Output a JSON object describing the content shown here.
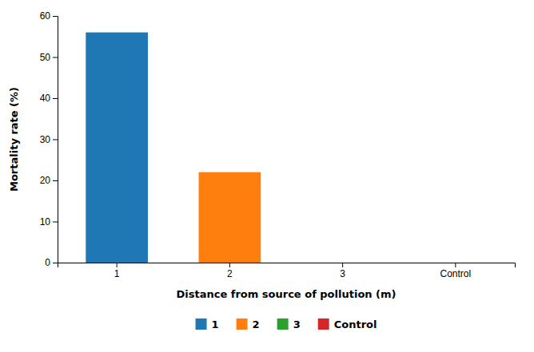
{
  "chart_data": {
    "type": "bar",
    "categories": [
      "1",
      "2",
      "3",
      "Control"
    ],
    "values": [
      56,
      22,
      0,
      0
    ],
    "xlabel": "Distance from source of pollution (m)",
    "ylabel": "Mortality rate (%)",
    "ylim": [
      0,
      60
    ],
    "yticks": [
      0,
      10,
      20,
      30,
      40,
      50,
      60
    ],
    "grid": false,
    "legend": "bottom"
  }
}
